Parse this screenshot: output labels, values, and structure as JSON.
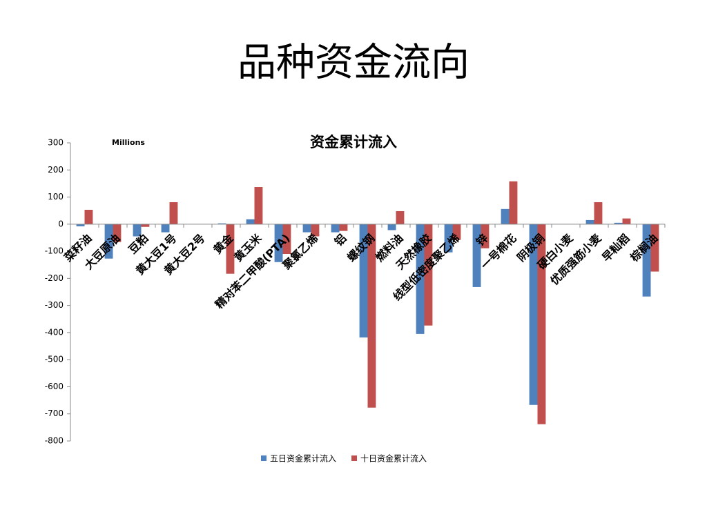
{
  "heading": "品种资金流向",
  "chart_data": {
    "type": "bar",
    "title": "资金累计流入",
    "unit_label": "Millions",
    "categories": [
      "菜籽油",
      "大豆原油",
      "豆粕",
      "黄大豆1号",
      "黄大豆2号",
      "黄金",
      "黄玉米",
      "精对苯二甲酸(PTA)",
      "聚氯乙烯",
      "铝",
      "螺纹钢",
      "燃料油",
      "天然橡胶",
      "线型低密度聚乙烯",
      "锌",
      "一号棉花",
      "阴极铜",
      "硬白小麦",
      "优质强筋小麦",
      "早籼稻",
      "棕榈油"
    ],
    "series": [
      {
        "name": "五日资金累计流入",
        "color": "#4f81bd",
        "values": [
          -8,
          -127,
          -45,
          -30,
          0,
          3,
          18,
          -140,
          -30,
          -30,
          -418,
          -22,
          -405,
          -104,
          -232,
          56,
          -667,
          0,
          15,
          5,
          -267
        ]
      },
      {
        "name": "十日资金累计流入",
        "color": "#c0504d",
        "values": [
          53,
          -66,
          -10,
          81,
          0,
          -183,
          137,
          -110,
          -45,
          -25,
          -677,
          48,
          -374,
          -58,
          -89,
          158,
          -738,
          0,
          81,
          21,
          -175
        ]
      }
    ],
    "ylim": [
      -800,
      300
    ],
    "yticks": [
      -800,
      -700,
      -600,
      -500,
      -400,
      -300,
      -200,
      -100,
      0,
      100,
      200,
      300
    ],
    "grid": false,
    "legend": "bottom"
  }
}
